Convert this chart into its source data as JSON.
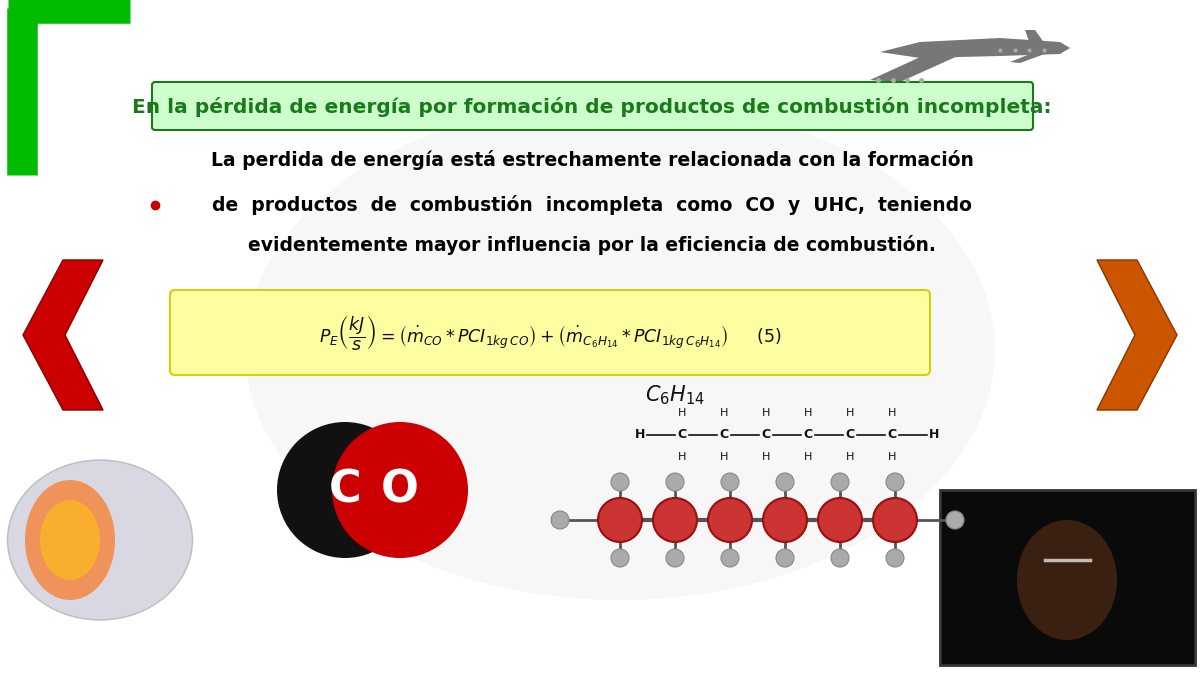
{
  "bg_color": "#ffffff",
  "title_text": "En la pérdida de energía por formación de productos de combustión incompleta:",
  "title_color": "#1a7a1a",
  "title_bg": "#ccffcc",
  "title_fontsize": 14.5,
  "body_text_line1": "La perdida de energía está estrechamente relacionada con la formación",
  "body_text_line2": "de  productos  de  combustión  incompleta  como  CO  y  UHC,  teniendo",
  "body_text_line3": "evidentemente mayor influencia por la eficiencia de combustión.",
  "body_fontsize": 13.5,
  "body_color": "#000000",
  "corner_color_green": "#00bb00",
  "arrow_left_color": "#cc0000",
  "arrow_right_color": "#cc5500"
}
